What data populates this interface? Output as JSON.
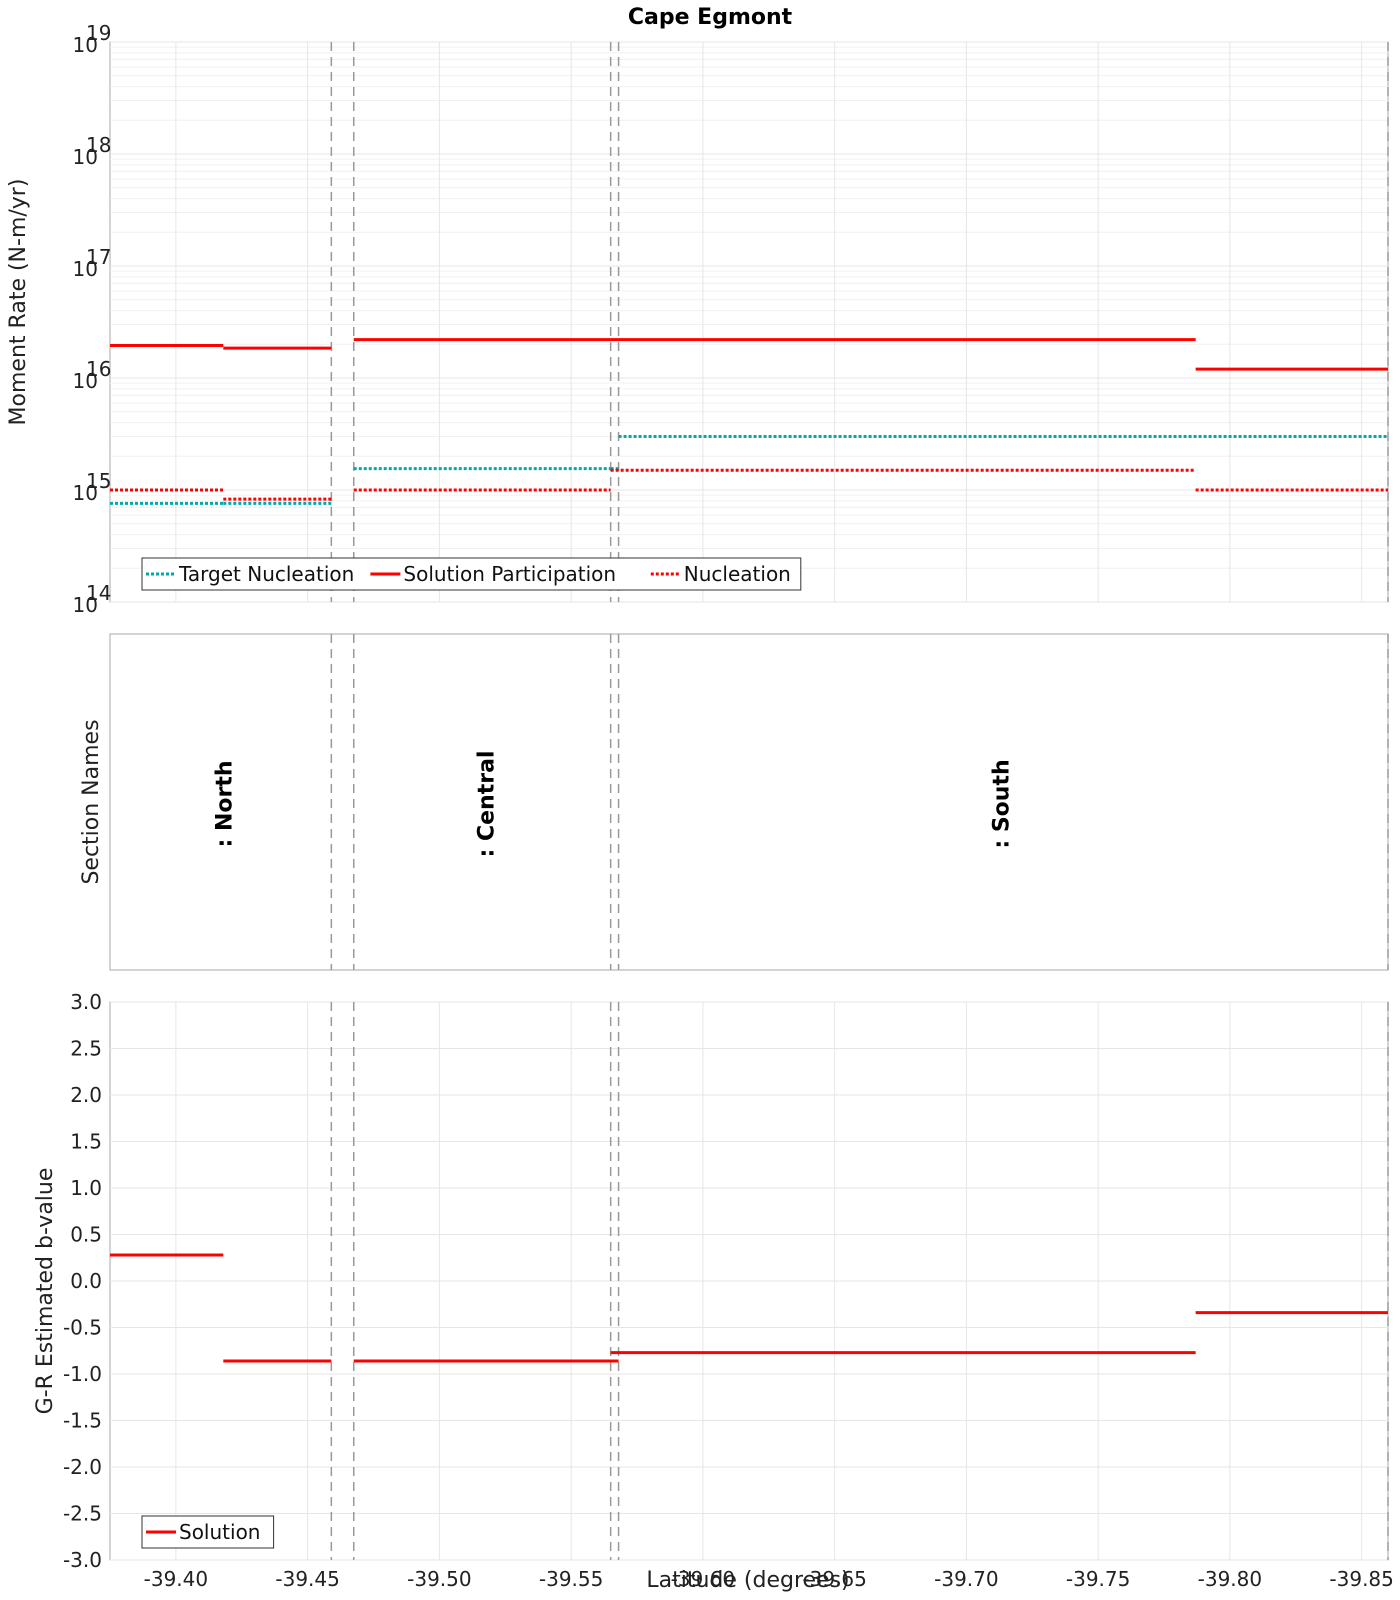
{
  "title": "Cape Egmont",
  "colors": {
    "target_nucleation": "#00aaaa",
    "solution": "#ff0000",
    "nucleation": "#ff0000",
    "grid": "#e6e6e6",
    "boundary": "#999999"
  },
  "x_axis": {
    "label": "Latitude (degrees)",
    "lim": [
      -39.375,
      -39.86
    ],
    "ticks": [
      -39.4,
      -39.45,
      -39.5,
      -39.55,
      -39.6,
      -39.65,
      -39.7,
      -39.75,
      -39.8,
      -39.85
    ],
    "tick_labels": [
      "-39.40",
      "-39.45",
      "-39.50",
      "-39.55",
      "-39.60",
      "-39.65",
      "-39.70",
      "-39.75",
      "-39.80",
      "-39.85"
    ]
  },
  "section_boundaries": [
    -39.459,
    -39.4675,
    -39.565,
    -39.568,
    -39.86
  ],
  "chart_data": [
    {
      "type": "line",
      "panel": "moment-rate",
      "ylabel": "Moment Rate (N-m/yr)",
      "yscale": "log",
      "ylim": [
        100000000000000.0,
        1e+19
      ],
      "ytick_exponents": [
        14,
        15,
        16,
        17,
        18,
        19
      ],
      "ytick_base": "10",
      "grid": true,
      "legend_position": "bottom-left",
      "series": [
        {
          "name": "Target Nucleation",
          "style": "dotted",
          "segments": [
            {
              "x": [
                -39.375,
                -39.418
              ],
              "y": 760000000000000.0
            },
            {
              "x": [
                -39.418,
                -39.459
              ],
              "y": 760000000000000.0
            },
            {
              "x": [
                -39.4675,
                -39.565
              ],
              "y": 1550000000000000.0
            },
            {
              "x": [
                -39.565,
                -39.568
              ],
              "y": 1550000000000000.0
            },
            {
              "x": [
                -39.568,
                -39.86
              ],
              "y": 3000000000000000.0
            }
          ]
        },
        {
          "name": "Solution Participation",
          "style": "solid",
          "segments": [
            {
              "x": [
                -39.375,
                -39.418
              ],
              "y": 1.95e+16
            },
            {
              "x": [
                -39.418,
                -39.459
              ],
              "y": 1.85e+16
            },
            {
              "x": [
                -39.4675,
                -39.787
              ],
              "y": 2.2e+16
            },
            {
              "x": [
                -39.787,
                -39.86
              ],
              "y": 1.2e+16
            }
          ]
        },
        {
          "name": "Nucleation",
          "style": "dotted",
          "segments": [
            {
              "x": [
                -39.375,
                -39.418
              ],
              "y": 1000000000000000.0
            },
            {
              "x": [
                -39.418,
                -39.459
              ],
              "y": 830000000000000.0
            },
            {
              "x": [
                -39.4675,
                -39.565
              ],
              "y": 1000000000000000.0
            },
            {
              "x": [
                -39.565,
                -39.787
              ],
              "y": 1500000000000000.0
            },
            {
              "x": [
                -39.787,
                -39.86
              ],
              "y": 1000000000000000.0
            }
          ]
        }
      ]
    },
    {
      "type": "table",
      "panel": "section-names",
      "ylabel": "Section Names",
      "labels": [
        {
          "text": ": North",
          "x": -39.418
        },
        {
          "text": ": Central",
          "x": -39.5175
        },
        {
          "text": ": South",
          "x": -39.713
        }
      ]
    },
    {
      "type": "line",
      "panel": "b-value",
      "ylabel": "G-R Estimated b-value",
      "ylim": [
        -3.0,
        3.0
      ],
      "yticks": [
        3.0,
        2.5,
        2.0,
        1.5,
        1.0,
        0.5,
        0.0,
        -0.5,
        -1.0,
        -1.5,
        -2.0,
        -2.5,
        -3.0
      ],
      "ytick_labels": [
        "3.0",
        "2.5",
        "2.0",
        "1.5",
        "1.0",
        "0.5",
        "0.0",
        "-0.5",
        "-1.0",
        "-1.5",
        "-2.0",
        "-2.5",
        "-3.0"
      ],
      "grid": true,
      "legend_position": "bottom-left",
      "series": [
        {
          "name": "Solution",
          "style": "solid",
          "segments": [
            {
              "x": [
                -39.375,
                -39.418
              ],
              "y": 0.28
            },
            {
              "x": [
                -39.418,
                -39.459
              ],
              "y": -0.86
            },
            {
              "x": [
                -39.4675,
                -39.568
              ],
              "y": -0.86
            },
            {
              "x": [
                -39.565,
                -39.787
              ],
              "y": -0.77
            },
            {
              "x": [
                -39.787,
                -39.86
              ],
              "y": -0.34
            }
          ]
        }
      ]
    }
  ]
}
